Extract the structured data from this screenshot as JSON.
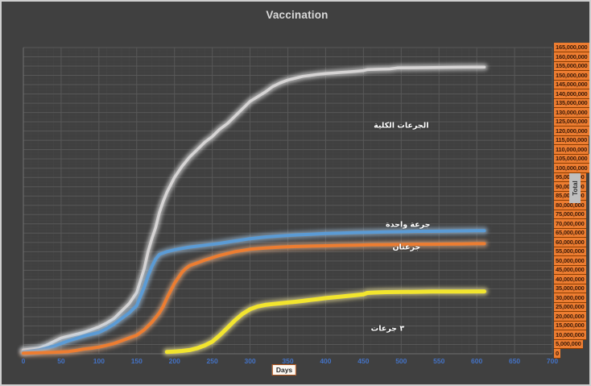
{
  "window": {
    "background": "#404040",
    "frame_color": "#cfcfcf"
  },
  "chart_data": {
    "type": "line",
    "title": "Vaccination",
    "xlabel": "Days",
    "ylabel": "Total",
    "x": {
      "min": 0,
      "max": 700,
      "tick_step": 50,
      "tick_color": "#4472c4"
    },
    "y": {
      "min": 0,
      "max": 165000000,
      "tick_step": 5000000,
      "labels_side": "right",
      "label_bg": "#ed7d31",
      "label_text": "#3d1b08"
    },
    "grid": {
      "major": true,
      "minor": true,
      "major_color": "#585858",
      "minor_color": "#4a4a4a"
    },
    "legend_position": "labels-on-chart",
    "values_unit": "millions",
    "series": [
      {
        "name": "الجرعات الكلية",
        "color": "#d6d4d4",
        "glow": "#ffffff",
        "width": 3.5,
        "label_anchor": {
          "day": 500,
          "value": 123
        },
        "points": [
          [
            0,
            2
          ],
          [
            10,
            2.5
          ],
          [
            20,
            3
          ],
          [
            30,
            4.5
          ],
          [
            40,
            6.5
          ],
          [
            50,
            8.5
          ],
          [
            60,
            9.5
          ],
          [
            70,
            10.5
          ],
          [
            80,
            11.5
          ],
          [
            90,
            13
          ],
          [
            100,
            14.5
          ],
          [
            110,
            16.5
          ],
          [
            120,
            19
          ],
          [
            130,
            23
          ],
          [
            140,
            27
          ],
          [
            150,
            33
          ],
          [
            160,
            46
          ],
          [
            165,
            55
          ],
          [
            170,
            62
          ],
          [
            175,
            68
          ],
          [
            180,
            76
          ],
          [
            185,
            82
          ],
          [
            190,
            87
          ],
          [
            195,
            91
          ],
          [
            200,
            95
          ],
          [
            210,
            101
          ],
          [
            220,
            106
          ],
          [
            230,
            110
          ],
          [
            240,
            114
          ],
          [
            250,
            117
          ],
          [
            260,
            121
          ],
          [
            270,
            124
          ],
          [
            280,
            128
          ],
          [
            290,
            132
          ],
          [
            300,
            136
          ],
          [
            310,
            138.5
          ],
          [
            320,
            141
          ],
          [
            330,
            144
          ],
          [
            340,
            146
          ],
          [
            350,
            147.5
          ],
          [
            360,
            148.5
          ],
          [
            370,
            149.5
          ],
          [
            380,
            150
          ],
          [
            390,
            150.6
          ],
          [
            400,
            151
          ],
          [
            410,
            151.3
          ],
          [
            420,
            151.6
          ],
          [
            430,
            151.9
          ],
          [
            440,
            152.2
          ],
          [
            450,
            152.6
          ],
          [
            455,
            153.1
          ],
          [
            470,
            153.3
          ],
          [
            485,
            153.5
          ],
          [
            495,
            154
          ],
          [
            515,
            154.1
          ],
          [
            535,
            154.2
          ],
          [
            555,
            154.3
          ],
          [
            575,
            154.4
          ],
          [
            595,
            154.5
          ],
          [
            610,
            154.5
          ]
        ]
      },
      {
        "name": "جرعة واحدة",
        "color": "#5b9bd5",
        "glow": "#a8cbea",
        "width": 4,
        "label_anchor": {
          "day": 509,
          "value": 69.5
        },
        "points": [
          [
            0,
            1
          ],
          [
            20,
            2
          ],
          [
            40,
            4
          ],
          [
            60,
            7
          ],
          [
            80,
            9.5
          ],
          [
            100,
            11.5
          ],
          [
            110,
            13.5
          ],
          [
            120,
            16
          ],
          [
            130,
            19
          ],
          [
            140,
            22
          ],
          [
            150,
            26
          ],
          [
            160,
            36
          ],
          [
            165,
            42
          ],
          [
            170,
            47
          ],
          [
            175,
            51
          ],
          [
            180,
            53.5
          ],
          [
            190,
            55
          ],
          [
            200,
            56
          ],
          [
            210,
            56.8
          ],
          [
            220,
            57.5
          ],
          [
            240,
            58.5
          ],
          [
            260,
            59.5
          ],
          [
            280,
            60.8
          ],
          [
            300,
            62
          ],
          [
            320,
            62.9
          ],
          [
            340,
            63.5
          ],
          [
            360,
            64
          ],
          [
            380,
            64.4
          ],
          [
            400,
            64.8
          ],
          [
            420,
            65
          ],
          [
            440,
            65.3
          ],
          [
            460,
            65.5
          ],
          [
            480,
            65.7
          ],
          [
            500,
            65.8
          ],
          [
            520,
            66
          ],
          [
            540,
            66
          ],
          [
            560,
            66.1
          ],
          [
            580,
            66.2
          ],
          [
            600,
            66.3
          ],
          [
            610,
            66.3
          ]
        ]
      },
      {
        "name": "جرعتان",
        "color": "#ed7d31",
        "glow": "#f6b587",
        "width": 4,
        "label_anchor": {
          "day": 507,
          "value": 57.2
        },
        "points": [
          [
            0,
            0.3
          ],
          [
            20,
            0.5
          ],
          [
            40,
            0.8
          ],
          [
            60,
            1.2
          ],
          [
            70,
            1.8
          ],
          [
            80,
            2.5
          ],
          [
            90,
            3
          ],
          [
            100,
            3.6
          ],
          [
            110,
            4.5
          ],
          [
            120,
            5.5
          ],
          [
            130,
            7
          ],
          [
            140,
            8.5
          ],
          [
            150,
            10
          ],
          [
            160,
            13
          ],
          [
            170,
            17
          ],
          [
            175,
            19.5
          ],
          [
            180,
            22
          ],
          [
            185,
            25.5
          ],
          [
            190,
            30
          ],
          [
            195,
            34
          ],
          [
            200,
            38
          ],
          [
            205,
            41
          ],
          [
            210,
            44
          ],
          [
            215,
            46
          ],
          [
            220,
            47.5
          ],
          [
            230,
            49
          ],
          [
            240,
            50.5
          ],
          [
            260,
            53
          ],
          [
            280,
            55
          ],
          [
            300,
            56.3
          ],
          [
            320,
            57
          ],
          [
            340,
            57.5
          ],
          [
            360,
            57.8
          ],
          [
            380,
            58
          ],
          [
            400,
            58.2
          ],
          [
            420,
            58.4
          ],
          [
            440,
            58.5
          ],
          [
            460,
            58.7
          ],
          [
            480,
            58.8
          ],
          [
            500,
            58.9
          ],
          [
            520,
            59
          ],
          [
            540,
            59
          ],
          [
            560,
            59.1
          ],
          [
            580,
            59.2
          ],
          [
            600,
            59.3
          ],
          [
            610,
            59.3
          ]
        ]
      },
      {
        "name": "٣ جرعات",
        "color": "#f2e52e",
        "glow": "#fff3a0",
        "width": 5,
        "label_anchor": {
          "day": 482,
          "value": 13.5
        },
        "points": [
          [
            190,
            1
          ],
          [
            200,
            1.2
          ],
          [
            210,
            1.5
          ],
          [
            220,
            2
          ],
          [
            230,
            3
          ],
          [
            240,
            4.5
          ],
          [
            250,
            6.5
          ],
          [
            260,
            10
          ],
          [
            270,
            14
          ],
          [
            280,
            18
          ],
          [
            290,
            21.5
          ],
          [
            300,
            24
          ],
          [
            310,
            25.5
          ],
          [
            320,
            26.3
          ],
          [
            330,
            26.8
          ],
          [
            340,
            27.2
          ],
          [
            350,
            27.6
          ],
          [
            360,
            28
          ],
          [
            370,
            28.5
          ],
          [
            380,
            29
          ],
          [
            390,
            29.5
          ],
          [
            400,
            30
          ],
          [
            410,
            30.4
          ],
          [
            420,
            30.8
          ],
          [
            430,
            31.2
          ],
          [
            440,
            31.6
          ],
          [
            450,
            32
          ],
          [
            455,
            32.8
          ],
          [
            465,
            33
          ],
          [
            480,
            33.2
          ],
          [
            500,
            33.3
          ],
          [
            520,
            33.4
          ],
          [
            540,
            33.5
          ],
          [
            560,
            33.5
          ],
          [
            580,
            33.5
          ],
          [
            600,
            33.6
          ],
          [
            610,
            33.6
          ]
        ]
      }
    ]
  }
}
